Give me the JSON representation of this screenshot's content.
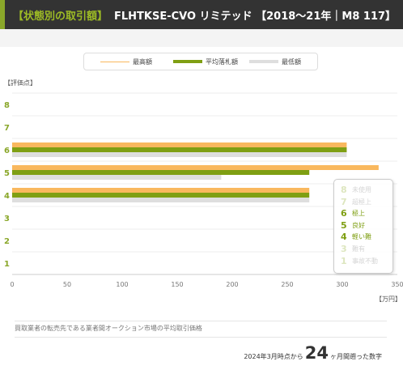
{
  "header": {
    "tag": "【状態別の取引額】",
    "title": "FLHTKSE-CVO リミテッド 【2018〜21年｜M8 117】"
  },
  "legend": {
    "max_label": "最高額",
    "avg_label": "平均落札額",
    "min_label": "最低額"
  },
  "colors": {
    "max": "#f9b85e",
    "avg": "#7f9f13",
    "min": "#dedede",
    "accent": "#8aa72a"
  },
  "chart_data": {
    "type": "bar",
    "orientation": "horizontal",
    "ylabel": "【評価点】",
    "xlabel_unit": "【万円】",
    "categories": [
      "8",
      "7",
      "6",
      "5",
      "4",
      "3",
      "2",
      "1"
    ],
    "series": [
      {
        "name": "最高額",
        "values": [
          null,
          null,
          304,
          333,
          270,
          null,
          null,
          null
        ]
      },
      {
        "name": "平均落札額",
        "values": [
          null,
          null,
          304,
          270,
          270,
          null,
          null,
          null
        ]
      },
      {
        "name": "最低額",
        "values": [
          null,
          null,
          304,
          190,
          270,
          null,
          null,
          null
        ]
      }
    ],
    "xlim": [
      0,
      350
    ],
    "xticks": [
      "0",
      "50",
      "100",
      "150",
      "200",
      "250",
      "300",
      "350"
    ],
    "grid": true,
    "legend_position": "top"
  },
  "grade_key": [
    {
      "num": "8",
      "label": "未使用",
      "active": false
    },
    {
      "num": "7",
      "label": "超極上",
      "active": false
    },
    {
      "num": "6",
      "label": "極上",
      "active": true
    },
    {
      "num": "5",
      "label": "良好",
      "active": true
    },
    {
      "num": "4",
      "label": "軽い難",
      "active": true
    },
    {
      "num": "3",
      "label": "難有",
      "active": false
    },
    {
      "num": "1",
      "label": "事故不動",
      "active": false
    }
  ],
  "note": "買取業者の転売先である業者間オークション市場の平均取引価格",
  "footer": {
    "prefix": "2024年3月時点から",
    "months": "24",
    "suffix": "ヶ月間遡った数字"
  }
}
